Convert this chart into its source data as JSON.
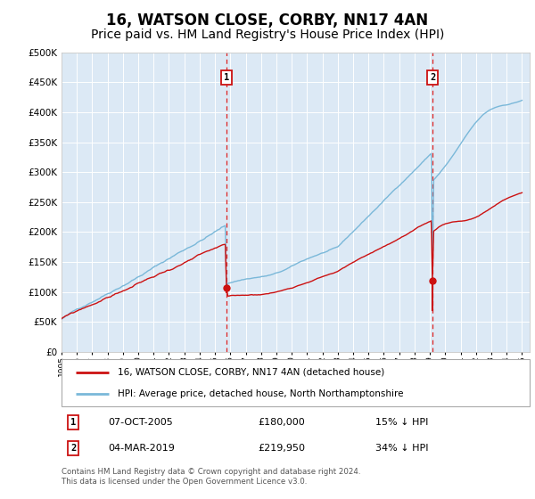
{
  "title": "16, WATSON CLOSE, CORBY, NN17 4AN",
  "subtitle": "Price paid vs. HM Land Registry's House Price Index (HPI)",
  "ylim": [
    0,
    500000
  ],
  "yticks": [
    0,
    50000,
    100000,
    150000,
    200000,
    250000,
    300000,
    350000,
    400000,
    450000,
    500000
  ],
  "ytick_labels": [
    "£0",
    "£50K",
    "£100K",
    "£150K",
    "£200K",
    "£250K",
    "£300K",
    "£350K",
    "£400K",
    "£450K",
    "£500K"
  ],
  "hpi_color": "#7ab8d9",
  "price_color": "#cc1111",
  "dashed_line_color": "#dd2222",
  "background_color": "#dce9f5",
  "grid_color": "#ffffff",
  "legend_label_price": "16, WATSON CLOSE, CORBY, NN17 4AN (detached house)",
  "legend_label_hpi": "HPI: Average price, detached house, North Northamptonshire",
  "marker1_year": 2005.77,
  "marker1_price": 180000,
  "marker1_date": "07-OCT-2005",
  "marker2_year": 2019.17,
  "marker2_price": 219950,
  "marker2_date": "04-MAR-2019",
  "footer": "Contains HM Land Registry data © Crown copyright and database right 2024.\nThis data is licensed under the Open Government Licence v3.0.",
  "title_fontsize": 12,
  "subtitle_fontsize": 10
}
